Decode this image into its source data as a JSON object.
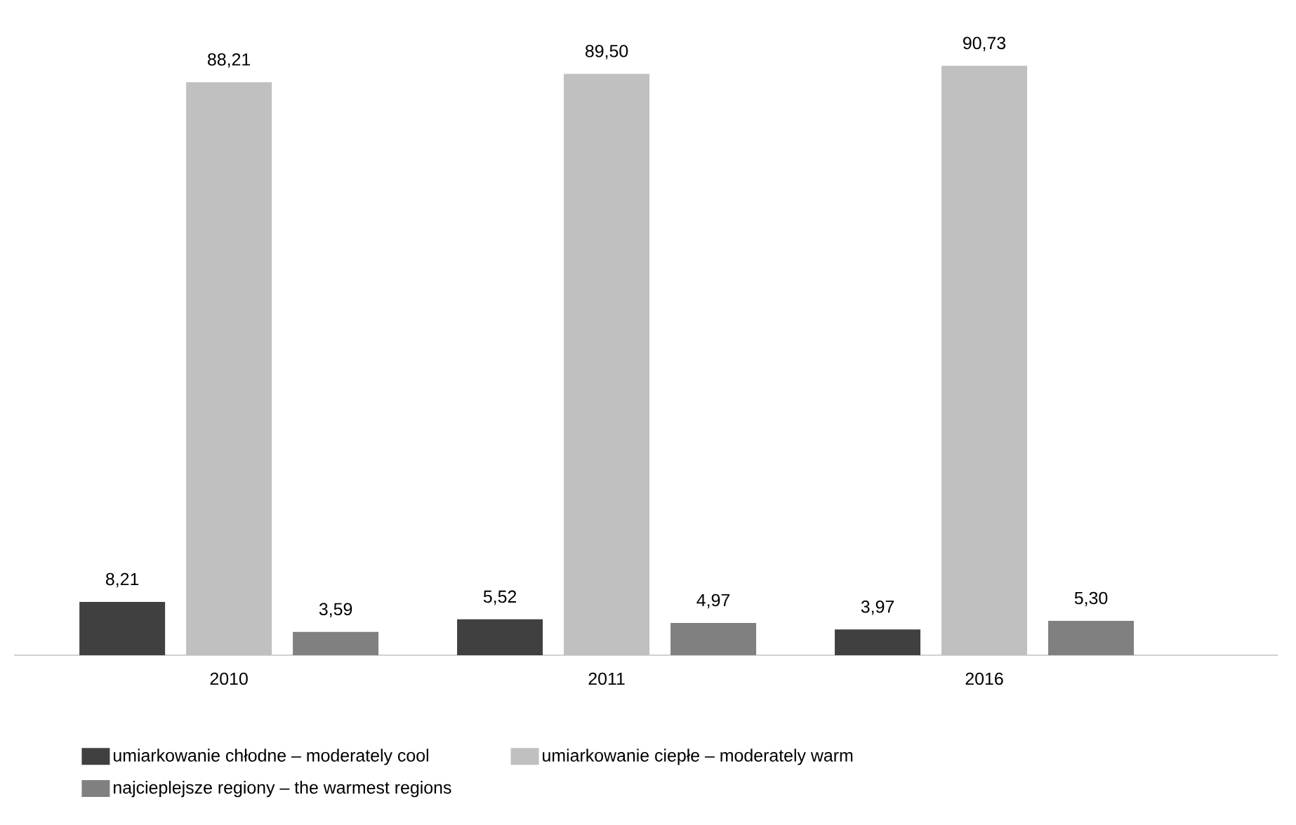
{
  "chart_data": {
    "type": "bar",
    "categories": [
      "2010",
      "2011",
      "2016"
    ],
    "series": [
      {
        "name": "umiarkowanie chłodne – moderately cool",
        "color": "#404040",
        "values": [
          8.21,
          5.52,
          3.97
        ],
        "value_labels": [
          "8,21",
          "5,52",
          "3,97"
        ]
      },
      {
        "name": "umiarkowanie ciepłe – moderately warm",
        "color": "#c0c0c0",
        "values": [
          88.21,
          89.5,
          90.73
        ],
        "value_labels": [
          "88,21",
          "89,50",
          "90,73"
        ]
      },
      {
        "name": "najcieplejsze regiony – the warmest regions",
        "color": "#808080",
        "values": [
          3.59,
          4.97,
          5.3
        ],
        "value_labels": [
          "3,59",
          "4,97",
          "5,30"
        ]
      }
    ],
    "legend": "bottom"
  }
}
